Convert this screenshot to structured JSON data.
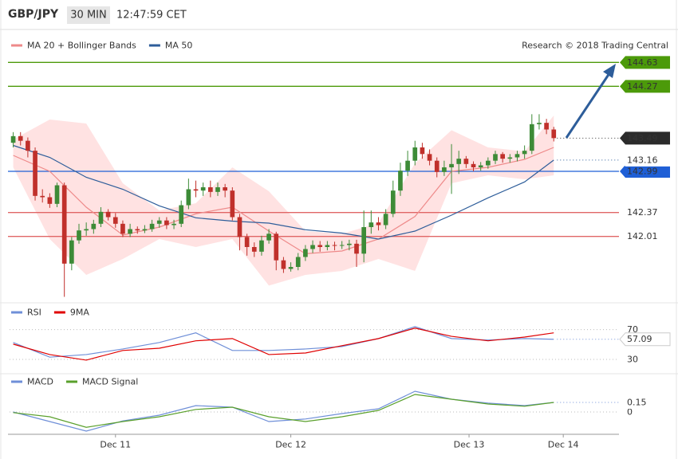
{
  "header": {
    "symbol": "GBP/JPY",
    "interval": "30 MIN",
    "time": "12:47:59 CET"
  },
  "chart_data": [
    {
      "type": "candlestick",
      "source": "Research © 2018 Trading Central",
      "xlim": [
        -0.5,
        75.5
      ],
      "ylim": [
        141.07,
        145.09
      ],
      "up_color": "#3d8b37",
      "down_color": "#c0302b",
      "last_price_color": "#2b2b2b",
      "open": [
        143.42,
        143.52,
        143.45,
        143.3,
        142.62,
        142.6,
        142.5,
        142.78,
        141.6,
        141.95,
        142.1,
        142.12,
        142.2,
        142.38,
        142.3,
        142.2,
        142.05,
        142.12,
        142.1,
        142.12,
        142.2,
        142.25,
        142.18,
        142.2,
        142.48,
        142.72,
        142.7,
        142.75,
        142.68,
        142.75,
        142.7,
        142.3,
        142.0,
        141.85,
        141.78,
        141.95,
        142.05,
        141.65,
        141.52,
        141.55,
        141.7,
        141.82,
        141.88,
        141.85,
        141.88,
        141.87,
        141.88,
        141.9,
        141.75,
        142.15,
        142.22,
        142.18,
        142.35,
        142.7,
        143.0,
        143.15,
        143.35,
        143.25,
        143.15,
        142.98,
        143.05,
        143.1,
        143.18,
        143.1,
        143.05,
        143.08,
        143.15,
        143.25,
        143.18,
        143.2,
        143.25,
        143.3,
        143.7,
        143.72,
        143.62
      ],
      "high": [
        143.58,
        143.58,
        143.5,
        143.35,
        142.72,
        142.66,
        142.82,
        142.82,
        142.0,
        142.2,
        142.22,
        142.26,
        142.45,
        142.42,
        142.36,
        142.25,
        142.2,
        142.16,
        142.18,
        142.26,
        142.3,
        142.3,
        142.26,
        142.55,
        142.88,
        142.85,
        142.82,
        142.85,
        142.82,
        142.8,
        142.75,
        142.35,
        142.05,
        141.92,
        142.02,
        142.12,
        142.08,
        141.7,
        141.62,
        141.76,
        141.88,
        141.95,
        141.94,
        141.94,
        141.93,
        141.94,
        141.96,
        141.96,
        142.4,
        142.4,
        142.3,
        142.42,
        142.85,
        143.12,
        143.3,
        143.45,
        143.42,
        143.32,
        143.2,
        143.15,
        143.4,
        143.3,
        143.22,
        143.14,
        143.13,
        143.2,
        143.3,
        143.28,
        143.25,
        143.3,
        143.38,
        143.85,
        143.85,
        143.78,
        143.66
      ],
      "low": [
        143.35,
        143.38,
        143.2,
        142.55,
        142.52,
        142.44,
        142.45,
        141.1,
        141.5,
        141.9,
        142.02,
        142.05,
        142.15,
        142.25,
        142.14,
        142.0,
        142.0,
        142.05,
        142.06,
        142.08,
        142.14,
        142.12,
        142.12,
        142.15,
        142.42,
        142.6,
        142.62,
        142.6,
        142.62,
        142.6,
        142.25,
        141.8,
        141.72,
        141.7,
        141.72,
        141.9,
        141.5,
        141.46,
        141.48,
        141.5,
        141.64,
        141.76,
        141.78,
        141.8,
        141.8,
        141.82,
        141.8,
        141.55,
        141.62,
        142.05,
        142.1,
        142.12,
        142.3,
        142.62,
        142.92,
        143.08,
        143.18,
        143.08,
        142.9,
        142.92,
        142.65,
        142.95,
        143.04,
        142.99,
        143.0,
        143.03,
        143.1,
        143.12,
        143.12,
        143.14,
        143.18,
        143.25,
        143.62,
        143.55,
        143.44
      ],
      "close": [
        143.52,
        143.45,
        143.3,
        142.62,
        142.6,
        142.5,
        142.78,
        141.6,
        141.95,
        142.1,
        142.12,
        142.2,
        142.38,
        142.3,
        142.2,
        142.05,
        142.12,
        142.1,
        142.12,
        142.2,
        142.25,
        142.18,
        142.2,
        142.48,
        142.72,
        142.7,
        142.75,
        142.68,
        142.75,
        142.7,
        142.3,
        142.0,
        141.85,
        141.78,
        141.95,
        142.05,
        141.65,
        141.52,
        141.55,
        141.7,
        141.82,
        141.88,
        141.85,
        141.88,
        141.87,
        141.88,
        141.9,
        141.75,
        142.15,
        142.22,
        142.18,
        142.35,
        142.7,
        143.0,
        143.15,
        143.35,
        143.25,
        143.15,
        142.98,
        143.05,
        143.1,
        143.18,
        143.1,
        143.05,
        143.08,
        143.15,
        143.25,
        143.18,
        143.2,
        143.25,
        143.3,
        143.7,
        143.72,
        143.62,
        143.49
      ],
      "series": [
        {
          "name": "MA 20 + Bollinger Bands",
          "color": "#ee8a8a",
          "x": [
            0,
            5,
            10,
            15,
            20,
            25,
            30,
            35,
            40,
            45,
            50,
            55,
            60,
            65,
            70,
            74
          ],
          "values": [
            143.23,
            142.99,
            142.45,
            142.03,
            142.15,
            142.35,
            142.45,
            142.09,
            141.75,
            141.79,
            141.97,
            142.31,
            142.99,
            143.05,
            143.17,
            143.35
          ],
          "band": {
            "color": "#ffd6d6",
            "upper": [
              143.47,
              143.77,
              143.71,
              142.81,
              142.4,
              142.51,
              143.05,
              142.69,
              142.09,
              142.05,
              142.21,
              143.11,
              143.61,
              143.35,
              143.29,
              143.83
            ],
            "lower": [
              143.05,
              141.97,
              141.43,
              141.67,
              141.97,
              141.85,
              141.97,
              141.27,
              141.43,
              141.49,
              141.67,
              141.49,
              142.81,
              142.93,
              142.87,
              142.93
            ]
          }
        },
        {
          "name": "MA 50",
          "color": "#2d5d9a",
          "show_last": true,
          "x": [
            0,
            5,
            10,
            15,
            20,
            25,
            30,
            35,
            40,
            45,
            50,
            55,
            60,
            65,
            70,
            74
          ],
          "values": [
            143.38,
            143.2,
            142.9,
            142.72,
            142.47,
            142.29,
            142.24,
            142.21,
            142.11,
            142.06,
            141.97,
            142.09,
            142.33,
            142.59,
            142.83,
            143.16
          ]
        }
      ],
      "levels": [
        {
          "value": 144.63,
          "color": "#4c9a0a",
          "filled": true
        },
        {
          "value": 144.27,
          "color": "#4c9a0a",
          "filled": true
        },
        {
          "value": 142.99,
          "color": "#1f5fd6",
          "filled": true
        },
        {
          "value": 142.37,
          "color": "#e06666",
          "filled": false
        },
        {
          "value": 142.01,
          "color": "#e06666",
          "filled": false
        }
      ]
    },
    {
      "type": "line",
      "xlim": [
        -0.5,
        75.5
      ],
      "ylim": [
        15,
        90
      ],
      "yticks": [
        30,
        70
      ],
      "series": [
        {
          "name": "RSI",
          "color": "#6f8fd8",
          "show_last": true,
          "x": [
            0,
            5,
            10,
            15,
            20,
            25,
            30,
            35,
            40,
            45,
            50,
            55,
            60,
            65,
            70,
            74
          ],
          "values": [
            52.7,
            33,
            36.5,
            44,
            52.7,
            65.7,
            42,
            42,
            44,
            47.3,
            58,
            74,
            58,
            56,
            58,
            57.09
          ]
        },
        {
          "name": "9MA",
          "color": "#e00000",
          "x": [
            0,
            5,
            10,
            15,
            20,
            25,
            30,
            35,
            40,
            45,
            50,
            55,
            60,
            65,
            70,
            74
          ],
          "values": [
            50.5,
            36.5,
            29,
            42,
            45,
            55,
            58,
            36.5,
            38.6,
            48.4,
            58,
            72,
            61,
            55,
            60,
            65.7
          ]
        }
      ]
    },
    {
      "type": "line",
      "xlim": [
        -0.5,
        75.5
      ],
      "ylim": [
        -0.35,
        0.4
      ],
      "yticks": [
        0
      ],
      "xticks": [
        {
          "value": 14,
          "label": "Dec 11"
        },
        {
          "value": 38,
          "label": "Dec 12"
        },
        {
          "value": 62.4,
          "label": "Dec 13"
        },
        {
          "value": 75.3,
          "label": "Dec 14"
        }
      ],
      "series": [
        {
          "name": "MACD",
          "color": "#6f8fd8",
          "show_last": true,
          "x": [
            0,
            5,
            10,
            15,
            20,
            25,
            30,
            35,
            40,
            45,
            50,
            55,
            60,
            65,
            70,
            74
          ],
          "values": [
            0,
            -0.15,
            -0.3,
            -0.14,
            -0.05,
            0.1,
            0.075,
            -0.15,
            -0.11,
            -0.025,
            0.05,
            0.325,
            0.2,
            0.14,
            0.1,
            0.15
          ]
        },
        {
          "name": "MACD Signal",
          "color": "#5aa02c",
          "x": [
            0,
            5,
            10,
            15,
            20,
            25,
            30,
            35,
            40,
            45,
            50,
            55,
            60,
            65,
            70,
            74
          ],
          "values": [
            -0.01,
            -0.075,
            -0.24,
            -0.15,
            -0.075,
            0.04,
            0.075,
            -0.075,
            -0.15,
            -0.075,
            0.025,
            0.275,
            0.2,
            0.125,
            0.09,
            0.15
          ]
        }
      ]
    }
  ]
}
